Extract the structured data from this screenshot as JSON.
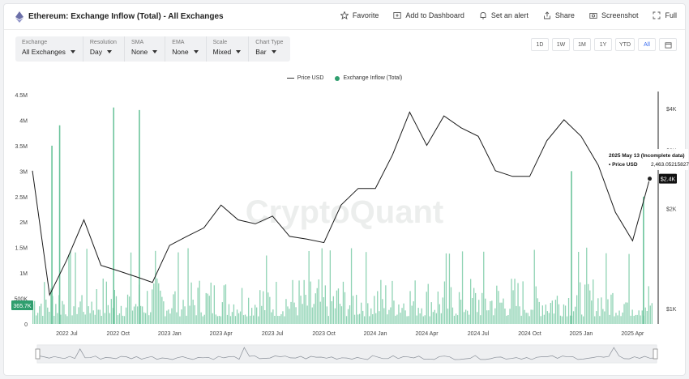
{
  "header": {
    "title": "Ethereum: Exchange Inflow (Total) - All Exchanges",
    "actions": [
      "Favorite",
      "Add to Dashboard",
      "Set an alert",
      "Share",
      "Screenshot",
      "Full"
    ]
  },
  "controls": {
    "exchange": {
      "label": "Exchange",
      "value": "All Exchanges"
    },
    "resolution": {
      "label": "Resolution",
      "value": "Day"
    },
    "sma": {
      "label": "SMA",
      "value": "None"
    },
    "ema": {
      "label": "EMA",
      "value": "None"
    },
    "scale": {
      "label": "Scale",
      "value": "Mixed"
    },
    "chart_type": {
      "label": "Chart Type",
      "value": "Bar"
    }
  },
  "ranges": [
    "1D",
    "1W",
    "1M",
    "1Y",
    "YTD",
    "All"
  ],
  "active_range": "All",
  "legend": {
    "price": "Price USD",
    "inflow": "Exchange Inflow (Total)"
  },
  "watermark": "CryptoQuant",
  "tooltip": {
    "date": "2025 May 13 (Incomplete data)",
    "label": "Price USD",
    "value": "2,463.05215827"
  },
  "current_inflow_label": "365.7K",
  "current_price_label": "$2.4K",
  "colors": {
    "bar": "#8fd3b4",
    "bar_spike": "#6cc49c",
    "price": "#1a1a1a",
    "accent": "#2f9e6e",
    "active_range": "#3a6df0"
  },
  "chart_data": {
    "type": "bar",
    "x_axis": {
      "ticks": [
        "2022 Jul",
        "2022 Oct",
        "2023 Jan",
        "2023 Apr",
        "2023 Jul",
        "2023 Oct",
        "2024 Jan",
        "2024 Apr",
        "2024 Jul",
        "2024 Oct",
        "2025 Jan",
        "2025 Apr"
      ]
    },
    "y_left": {
      "min": 0,
      "max": 4500000,
      "ticks": [
        "0",
        "500K",
        "1M",
        "1.5M",
        "2M",
        "2.5M",
        "3M",
        "3.5M",
        "4M",
        "4.5M"
      ]
    },
    "y_right": {
      "scale": "log",
      "ticks": [
        "$1K",
        "$2K",
        "$3K",
        "$4K"
      ]
    },
    "series": [
      {
        "name": "Exchange Inflow (Total)",
        "kind": "bar",
        "axis": "left",
        "typical_range": [
          150000,
          1000000
        ],
        "spikes": [
          {
            "date": "2022 Jun",
            "value": 3500000
          },
          {
            "date": "2022 Jun",
            "value": 3900000
          },
          {
            "date": "2022 Sep",
            "value": 4250000
          },
          {
            "date": "2022 Nov",
            "value": 4200000
          },
          {
            "date": "2024 Dec",
            "value": 3000000
          },
          {
            "date": "2025 Apr",
            "value": 2500000
          }
        ],
        "last_value": 365700
      },
      {
        "name": "Price USD",
        "kind": "line",
        "axis": "right",
        "points": [
          [
            "2022 May",
            2600
          ],
          [
            "2022 Jun",
            1100
          ],
          [
            "2022 Jul",
            1400
          ],
          [
            "2022 Aug",
            1850
          ],
          [
            "2022 Sep",
            1350
          ],
          [
            "2022 Oct",
            1300
          ],
          [
            "2022 Nov",
            1250
          ],
          [
            "2022 Dec",
            1200
          ],
          [
            "2023 Jan",
            1550
          ],
          [
            "2023 Feb",
            1650
          ],
          [
            "2023 Mar",
            1750
          ],
          [
            "2023 Apr",
            2050
          ],
          [
            "2023 May",
            1850
          ],
          [
            "2023 Jun",
            1800
          ],
          [
            "2023 Jul",
            1900
          ],
          [
            "2023 Aug",
            1650
          ],
          [
            "2023 Sep",
            1620
          ],
          [
            "2023 Oct",
            1580
          ],
          [
            "2023 Nov",
            2050
          ],
          [
            "2023 Dec",
            2300
          ],
          [
            "2024 Jan",
            2300
          ],
          [
            "2024 Feb",
            2900
          ],
          [
            "2024 Mar",
            3900
          ],
          [
            "2024 Apr",
            3100
          ],
          [
            "2024 May",
            3800
          ],
          [
            "2024 Jun",
            3500
          ],
          [
            "2024 Jul",
            3300
          ],
          [
            "2024 Aug",
            2600
          ],
          [
            "2024 Sep",
            2500
          ],
          [
            "2024 Oct",
            2500
          ],
          [
            "2024 Nov",
            3200
          ],
          [
            "2024 Dec",
            3700
          ],
          [
            "2025 Jan",
            3300
          ],
          [
            "2025 Feb",
            2700
          ],
          [
            "2025 Mar",
            1950
          ],
          [
            "2025 Apr",
            1600
          ],
          [
            "2025 May",
            2460
          ]
        ]
      }
    ]
  }
}
